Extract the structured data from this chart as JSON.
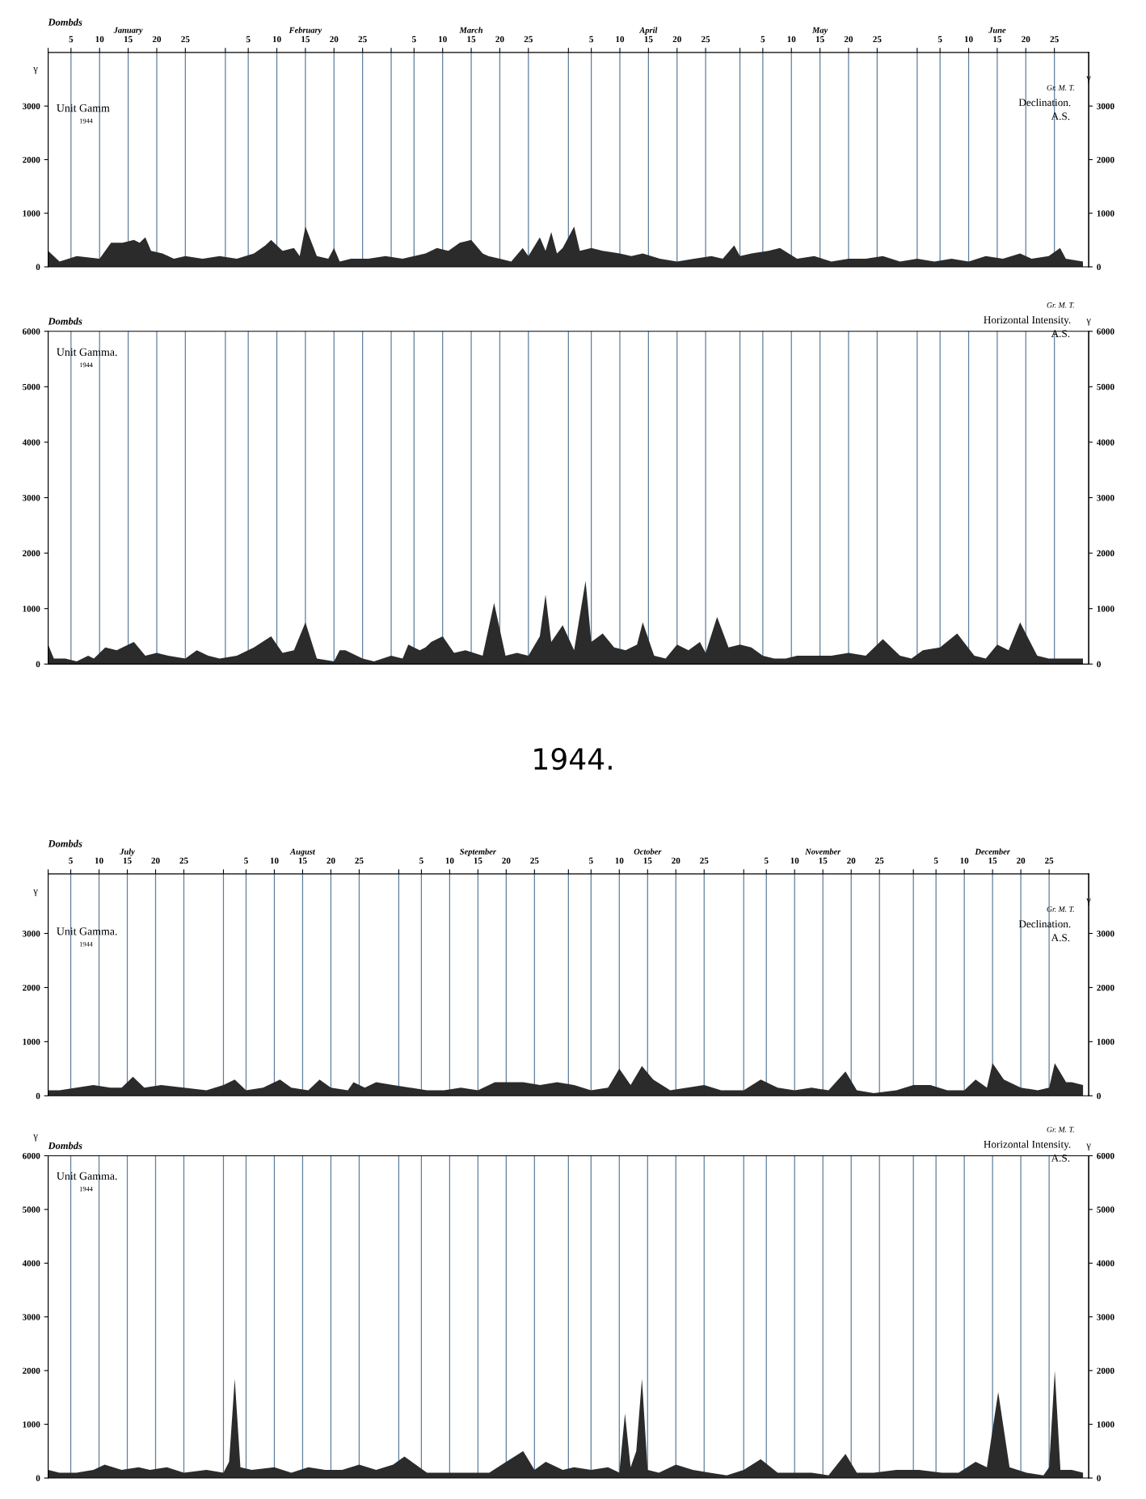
{
  "chart_data": [
    {
      "type": "area",
      "title": "Dombds",
      "ylabel": "γ",
      "y2label": "γ",
      "color": "#2b2b2b",
      "grid": "x",
      "xlim": [
        "1944-01-01",
        "1944-07-01"
      ],
      "ylim": [
        0,
        4000
      ],
      "yticks": [
        0,
        1000,
        2000,
        3000
      ],
      "y2lim": [
        0,
        4000
      ],
      "y2ticks": [
        0,
        1000,
        2000,
        3000
      ],
      "xticks": [
        {
          "value": "1944-01-01",
          "label": null
        },
        {
          "value": "1944-01-05",
          "label": "5"
        },
        {
          "value": "1944-01-10",
          "label": "10"
        },
        {
          "value": "1944-01-15",
          "label": "15"
        },
        {
          "value": "1944-01-20",
          "label": "20"
        },
        {
          "value": "1944-01-25",
          "label": "25"
        },
        {
          "value": "1944-02-01",
          "label": null
        },
        {
          "value": "1944-02-05",
          "label": "5"
        },
        {
          "value": "1944-02-10",
          "label": "10"
        },
        {
          "value": "1944-02-15",
          "label": "15"
        },
        {
          "value": "1944-02-20",
          "label": "20"
        },
        {
          "value": "1944-02-25",
          "label": "25"
        },
        {
          "value": "1944-03-01",
          "label": null
        },
        {
          "value": "1944-03-05",
          "label": "5"
        },
        {
          "value": "1944-03-10",
          "label": "10"
        },
        {
          "value": "1944-03-15",
          "label": "15"
        },
        {
          "value": "1944-03-20",
          "label": "20"
        },
        {
          "value": "1944-03-25",
          "label": "25"
        },
        {
          "value": "1944-04-01",
          "label": null
        },
        {
          "value": "1944-04-05",
          "label": "5"
        },
        {
          "value": "1944-04-10",
          "label": "10"
        },
        {
          "value": "1944-04-15",
          "label": "15"
        },
        {
          "value": "1944-04-20",
          "label": "20"
        },
        {
          "value": "1944-04-25",
          "label": "25"
        },
        {
          "value": "1944-05-01",
          "label": null
        },
        {
          "value": "1944-05-05",
          "label": "5"
        },
        {
          "value": "1944-05-10",
          "label": "10"
        },
        {
          "value": "1944-05-15",
          "label": "15"
        },
        {
          "value": "1944-05-20",
          "label": "20"
        },
        {
          "value": "1944-05-25",
          "label": "25"
        },
        {
          "value": "1944-06-01",
          "label": null
        },
        {
          "value": "1944-06-05",
          "label": "5"
        },
        {
          "value": "1944-06-10",
          "label": "10"
        },
        {
          "value": "1944-06-15",
          "label": "15"
        },
        {
          "value": "1944-06-20",
          "label": "20"
        },
        {
          "value": "1944-06-25",
          "label": "25"
        }
      ],
      "annotations": [
        "January",
        "February",
        "March",
        "April",
        "May",
        "June",
        "Unit Gamm",
        "1944",
        "Gr. M. T.",
        "Declination.",
        "A.S."
      ],
      "x": [
        "1944-01-01",
        "1944-01-03",
        "1944-01-06",
        "1944-01-10",
        "1944-01-12",
        "1944-01-14",
        "1944-01-16",
        "1944-01-17",
        "1944-01-18",
        "1944-01-19",
        "1944-01-21",
        "1944-01-23",
        "1944-01-25",
        "1944-01-28",
        "1944-01-31",
        "1944-02-03",
        "1944-02-06",
        "1944-02-08",
        "1944-02-09",
        "1944-02-11",
        "1944-02-13",
        "1944-02-14",
        "1944-02-15",
        "1944-02-17",
        "1944-02-19",
        "1944-02-20",
        "1944-02-21",
        "1944-02-23",
        "1944-02-26",
        "1944-02-29",
        "1944-03-03",
        "1944-03-05",
        "1944-03-07",
        "1944-03-09",
        "1944-03-11",
        "1944-03-13",
        "1944-03-15",
        "1944-03-17",
        "1944-03-18",
        "1944-03-20",
        "1944-03-22",
        "1944-03-24",
        "1944-03-25",
        "1944-03-27",
        "1944-03-28",
        "1944-03-29",
        "1944-03-30",
        "1944-03-31",
        "1944-04-02",
        "1944-04-03",
        "1944-04-05",
        "1944-04-07",
        "1944-04-10",
        "1944-04-12",
        "1944-04-14",
        "1944-04-17",
        "1944-04-20",
        "1944-04-23",
        "1944-04-26",
        "1944-04-28",
        "1944-04-30",
        "1944-05-01",
        "1944-05-03",
        "1944-05-06",
        "1944-05-08",
        "1944-05-11",
        "1944-05-14",
        "1944-05-17",
        "1944-05-20",
        "1944-05-23",
        "1944-05-26",
        "1944-05-29",
        "1944-06-01",
        "1944-06-04",
        "1944-06-07",
        "1944-06-10",
        "1944-06-13",
        "1944-06-16",
        "1944-06-19",
        "1944-06-21",
        "1944-06-24",
        "1944-06-26",
        "1944-06-27",
        "1944-06-30"
      ],
      "values": [
        300,
        100,
        200,
        150,
        450,
        450,
        500,
        450,
        550,
        300,
        250,
        150,
        200,
        150,
        200,
        150,
        250,
        400,
        500,
        300,
        350,
        200,
        750,
        200,
        150,
        350,
        100,
        150,
        150,
        200,
        150,
        200,
        250,
        350,
        300,
        450,
        500,
        250,
        200,
        150,
        100,
        350,
        200,
        550,
        300,
        650,
        250,
        350,
        750,
        300,
        350,
        300,
        250,
        200,
        250,
        150,
        100,
        150,
        200,
        150,
        400,
        200,
        250,
        300,
        350,
        150,
        200,
        100,
        150,
        150,
        200,
        100,
        150,
        100,
        150,
        100,
        200,
        150,
        250,
        150,
        200,
        350,
        150,
        100
      ]
    },
    {
      "type": "area",
      "title": "Dombds",
      "y2label": "γ",
      "color": "#2b2b2b",
      "grid": "x",
      "tick_labels": "y",
      "xlim": [
        "1944-01-01",
        "1944-07-01"
      ],
      "ylim": [
        0,
        6000
      ],
      "yticks": [
        0,
        1000,
        2000,
        3000,
        4000,
        5000,
        6000
      ],
      "y2lim": [
        0,
        6000
      ],
      "y2ticks": [
        0,
        1000,
        2000,
        3000,
        4000,
        5000,
        6000
      ],
      "xticks": [
        {
          "value": "1944-01-01",
          "label": null
        },
        {
          "value": "1944-01-05",
          "label": null
        },
        {
          "value": "1944-01-10",
          "label": null
        },
        {
          "value": "1944-01-15",
          "label": null
        },
        {
          "value": "1944-01-20",
          "label": null
        },
        {
          "value": "1944-01-25",
          "label": null
        },
        {
          "value": "1944-02-01",
          "label": null
        },
        {
          "value": "1944-02-05",
          "label": null
        },
        {
          "value": "1944-02-10",
          "label": null
        },
        {
          "value": "1944-02-15",
          "label": null
        },
        {
          "value": "1944-02-20",
          "label": null
        },
        {
          "value": "1944-02-25",
          "label": null
        },
        {
          "value": "1944-03-01",
          "label": null
        },
        {
          "value": "1944-03-05",
          "label": null
        },
        {
          "value": "1944-03-10",
          "label": null
        },
        {
          "value": "1944-03-15",
          "label": null
        },
        {
          "value": "1944-03-20",
          "label": null
        },
        {
          "value": "1944-03-25",
          "label": null
        },
        {
          "value": "1944-04-01",
          "label": null
        },
        {
          "value": "1944-04-05",
          "label": null
        },
        {
          "value": "1944-04-10",
          "label": null
        },
        {
          "value": "1944-04-15",
          "label": null
        },
        {
          "value": "1944-04-20",
          "label": null
        },
        {
          "value": "1944-04-25",
          "label": null
        },
        {
          "value": "1944-05-01",
          "label": null
        },
        {
          "value": "1944-05-05",
          "label": null
        },
        {
          "value": "1944-05-10",
          "label": null
        },
        {
          "value": "1944-05-15",
          "label": null
        },
        {
          "value": "1944-05-20",
          "label": null
        },
        {
          "value": "1944-05-25",
          "label": null
        },
        {
          "value": "1944-06-01",
          "label": null
        },
        {
          "value": "1944-06-05",
          "label": null
        },
        {
          "value": "1944-06-10",
          "label": null
        },
        {
          "value": "1944-06-15",
          "label": null
        },
        {
          "value": "1944-06-20",
          "label": null
        },
        {
          "value": "1944-06-25",
          "label": null
        }
      ],
      "annotations": [
        "Unit Gamma.",
        "1944",
        "Gr. M. T.",
        "Horizontal Intensity.",
        "A.S."
      ],
      "x": [
        "1944-01-01",
        "1944-01-02",
        "1944-01-04",
        "1944-01-06",
        "1944-01-08",
        "1944-01-09",
        "1944-01-11",
        "1944-01-13",
        "1944-01-14",
        "1944-01-16",
        "1944-01-18",
        "1944-01-20",
        "1944-01-22",
        "1944-01-25",
        "1944-01-27",
        "1944-01-29",
        "1944-01-31",
        "1944-02-03",
        "1944-02-06",
        "1944-02-09",
        "1944-02-11",
        "1944-02-13",
        "1944-02-15",
        "1944-02-17",
        "1944-02-20",
        "1944-02-21",
        "1944-02-22",
        "1944-02-25",
        "1944-02-27",
        "1944-03-01",
        "1944-03-03",
        "1944-03-04",
        "1944-03-06",
        "1944-03-07",
        "1944-03-08",
        "1944-03-10",
        "1944-03-12",
        "1944-03-14",
        "1944-03-17",
        "1944-03-19",
        "1944-03-21",
        "1944-03-23",
        "1944-03-25",
        "1944-03-27",
        "1944-03-28",
        "1944-03-29",
        "1944-03-31",
        "1944-04-02",
        "1944-04-04",
        "1944-04-05",
        "1944-04-07",
        "1944-04-09",
        "1944-04-11",
        "1944-04-13",
        "1944-04-14",
        "1944-04-16",
        "1944-04-18",
        "1944-04-20",
        "1944-04-22",
        "1944-04-24",
        "1944-04-25",
        "1944-04-27",
        "1944-04-29",
        "1944-05-01",
        "1944-05-03",
        "1944-05-05",
        "1944-05-07",
        "1944-05-09",
        "1944-05-11",
        "1944-05-14",
        "1944-05-17",
        "1944-05-20",
        "1944-05-23",
        "1944-05-26",
        "1944-05-28",
        "1944-05-29",
        "1944-05-31",
        "1944-06-02",
        "1944-06-05",
        "1944-06-08",
        "1944-06-11",
        "1944-06-13",
        "1944-06-15",
        "1944-06-17",
        "1944-06-19",
        "1944-06-22",
        "1944-06-24",
        "1944-06-26",
        "1944-06-28",
        "1944-06-30"
      ],
      "values": [
        350,
        100,
        100,
        50,
        150,
        100,
        300,
        250,
        300,
        400,
        150,
        200,
        150,
        100,
        250,
        150,
        100,
        150,
        300,
        500,
        200,
        250,
        750,
        100,
        50,
        250,
        250,
        100,
        50,
        150,
        100,
        350,
        250,
        300,
        400,
        500,
        200,
        250,
        150,
        1100,
        150,
        200,
        150,
        500,
        1250,
        400,
        700,
        250,
        1500,
        400,
        550,
        300,
        250,
        350,
        750,
        150,
        100,
        350,
        250,
        400,
        200,
        850,
        300,
        350,
        300,
        150,
        100,
        100,
        150,
        150,
        150,
        200,
        150,
        450,
        250,
        150,
        100,
        250,
        300,
        550,
        150,
        100,
        350,
        250,
        750,
        150,
        100,
        100,
        100,
        100
      ]
    },
    {
      "type": "area",
      "title": "Dombds",
      "subtitle": "1944.",
      "ylabel": "γ",
      "y2label": "γ",
      "color": "#2b2b2b",
      "grid": "x",
      "xlim": [
        "1944-07-01",
        "1945-01-01"
      ],
      "ylim": [
        0,
        4100
      ],
      "yticks": [
        0,
        1000,
        2000,
        3000
      ],
      "y2lim": [
        0,
        4100
      ],
      "y2ticks": [
        0,
        1000,
        2000,
        3000
      ],
      "xticks": [
        {
          "value": "1944-07-01",
          "label": null
        },
        {
          "value": "1944-07-05",
          "label": "5"
        },
        {
          "value": "1944-07-10",
          "label": "10"
        },
        {
          "value": "1944-07-15",
          "label": "15"
        },
        {
          "value": "1944-07-20",
          "label": "20"
        },
        {
          "value": "1944-07-25",
          "label": "25"
        },
        {
          "value": "1944-08-01",
          "label": null
        },
        {
          "value": "1944-08-05",
          "label": "5"
        },
        {
          "value": "1944-08-10",
          "label": "10"
        },
        {
          "value": "1944-08-15",
          "label": "15"
        },
        {
          "value": "1944-08-20",
          "label": "20"
        },
        {
          "value": "1944-08-25",
          "label": "25"
        },
        {
          "value": "1944-09-01",
          "label": null
        },
        {
          "value": "1944-09-05",
          "label": "5"
        },
        {
          "value": "1944-09-10",
          "label": "10"
        },
        {
          "value": "1944-09-15",
          "label": "15"
        },
        {
          "value": "1944-09-20",
          "label": "20"
        },
        {
          "value": "1944-09-25",
          "label": "25"
        },
        {
          "value": "1944-10-01",
          "label": null
        },
        {
          "value": "1944-10-05",
          "label": "5"
        },
        {
          "value": "1944-10-10",
          "label": "10"
        },
        {
          "value": "1944-10-15",
          "label": "15"
        },
        {
          "value": "1944-10-20",
          "label": "20"
        },
        {
          "value": "1944-10-25",
          "label": "25"
        },
        {
          "value": "1944-11-01",
          "label": null
        },
        {
          "value": "1944-11-05",
          "label": "5"
        },
        {
          "value": "1944-11-10",
          "label": "10"
        },
        {
          "value": "1944-11-15",
          "label": "15"
        },
        {
          "value": "1944-11-20",
          "label": "20"
        },
        {
          "value": "1944-11-25",
          "label": "25"
        },
        {
          "value": "1944-12-01",
          "label": null
        },
        {
          "value": "1944-12-05",
          "label": "5"
        },
        {
          "value": "1944-12-10",
          "label": "10"
        },
        {
          "value": "1944-12-15",
          "label": "15"
        },
        {
          "value": "1944-12-20",
          "label": "20"
        },
        {
          "value": "1944-12-25",
          "label": "25"
        }
      ],
      "annotations": [
        "July",
        "August",
        "September",
        "October",
        "November",
        "December",
        "Unit Gamma.",
        "1944",
        "Gr. M. T.",
        "Declination.",
        "A.S."
      ],
      "x": [
        "1944-07-01",
        "1944-07-03",
        "1944-07-06",
        "1944-07-09",
        "1944-07-12",
        "1944-07-14",
        "1944-07-16",
        "1944-07-18",
        "1944-07-21",
        "1944-07-25",
        "1944-07-29",
        "1944-08-01",
        "1944-08-03",
        "1944-08-05",
        "1944-08-08",
        "1944-08-11",
        "1944-08-13",
        "1944-08-16",
        "1944-08-18",
        "1944-08-20",
        "1944-08-23",
        "1944-08-24",
        "1944-08-26",
        "1944-08-28",
        "1944-08-31",
        "1944-09-03",
        "1944-09-06",
        "1944-09-09",
        "1944-09-12",
        "1944-09-15",
        "1944-09-18",
        "1944-09-20",
        "1944-09-23",
        "1944-09-26",
        "1944-09-29",
        "1944-10-02",
        "1944-10-05",
        "1944-10-08",
        "1944-10-10",
        "1944-10-12",
        "1944-10-14",
        "1944-10-16",
        "1944-10-19",
        "1944-10-22",
        "1944-10-25",
        "1944-10-28",
        "1944-11-01",
        "1944-11-04",
        "1944-11-07",
        "1944-11-10",
        "1944-11-13",
        "1944-11-16",
        "1944-11-19",
        "1944-11-21",
        "1944-11-24",
        "1944-11-28",
        "1944-12-01",
        "1944-12-04",
        "1944-12-07",
        "1944-12-10",
        "1944-12-12",
        "1944-12-14",
        "1944-12-15",
        "1944-12-17",
        "1944-12-20",
        "1944-12-23",
        "1944-12-25",
        "1944-12-26",
        "1944-12-28",
        "1944-12-29",
        "1944-12-31"
      ],
      "values": [
        100,
        100,
        150,
        200,
        150,
        150,
        350,
        150,
        200,
        150,
        100,
        200,
        300,
        100,
        150,
        300,
        150,
        100,
        300,
        150,
        100,
        250,
        150,
        250,
        200,
        150,
        100,
        100,
        150,
        100,
        250,
        250,
        250,
        200,
        250,
        200,
        100,
        150,
        500,
        200,
        550,
        300,
        100,
        150,
        200,
        100,
        100,
        300,
        150,
        100,
        150,
        100,
        450,
        100,
        50,
        100,
        200,
        200,
        100,
        100,
        300,
        150,
        600,
        300,
        150,
        100,
        150,
        600,
        250,
        250,
        200
      ]
    },
    {
      "type": "area",
      "title": "Dombds",
      "ylabel": "γ",
      "y2label": "γ",
      "color": "#2b2b2b",
      "grid": "x",
      "tick_labels": "y",
      "xlim": [
        "1944-07-01",
        "1945-01-01"
      ],
      "ylim": [
        0,
        6000
      ],
      "yticks": [
        0,
        1000,
        2000,
        3000,
        4000,
        5000,
        6000
      ],
      "y2lim": [
        0,
        6000
      ],
      "y2ticks": [
        0,
        1000,
        2000,
        3000,
        4000,
        5000,
        6000
      ],
      "xticks": [
        {
          "value": "1944-07-01",
          "label": null
        },
        {
          "value": "1944-07-05",
          "label": null
        },
        {
          "value": "1944-07-10",
          "label": null
        },
        {
          "value": "1944-07-15",
          "label": null
        },
        {
          "value": "1944-07-20",
          "label": null
        },
        {
          "value": "1944-07-25",
          "label": null
        },
        {
          "value": "1944-08-01",
          "label": null
        },
        {
          "value": "1944-08-05",
          "label": null
        },
        {
          "value": "1944-08-10",
          "label": null
        },
        {
          "value": "1944-08-15",
          "label": null
        },
        {
          "value": "1944-08-20",
          "label": null
        },
        {
          "value": "1944-08-25",
          "label": null
        },
        {
          "value": "1944-09-01",
          "label": null
        },
        {
          "value": "1944-09-05",
          "label": null
        },
        {
          "value": "1944-09-10",
          "label": null
        },
        {
          "value": "1944-09-15",
          "label": null
        },
        {
          "value": "1944-09-20",
          "label": null
        },
        {
          "value": "1944-09-25",
          "label": null
        },
        {
          "value": "1944-10-01",
          "label": null
        },
        {
          "value": "1944-10-05",
          "label": null
        },
        {
          "value": "1944-10-10",
          "label": null
        },
        {
          "value": "1944-10-15",
          "label": null
        },
        {
          "value": "1944-10-20",
          "label": null
        },
        {
          "value": "1944-10-25",
          "label": null
        },
        {
          "value": "1944-11-01",
          "label": null
        },
        {
          "value": "1944-11-05",
          "label": null
        },
        {
          "value": "1944-11-10",
          "label": null
        },
        {
          "value": "1944-11-15",
          "label": null
        },
        {
          "value": "1944-11-20",
          "label": null
        },
        {
          "value": "1944-11-25",
          "label": null
        },
        {
          "value": "1944-12-01",
          "label": null
        },
        {
          "value": "1944-12-05",
          "label": null
        },
        {
          "value": "1944-12-10",
          "label": null
        },
        {
          "value": "1944-12-15",
          "label": null
        },
        {
          "value": "1944-12-20",
          "label": null
        },
        {
          "value": "1944-12-25",
          "label": null
        }
      ],
      "annotations": [
        "Unit Gamma.",
        "1944",
        "Gr. M. T.",
        "Horizontal Intensity.",
        "A.S."
      ],
      "x": [
        "1944-07-01",
        "1944-07-03",
        "1944-07-06",
        "1944-07-09",
        "1944-07-11",
        "1944-07-14",
        "1944-07-17",
        "1944-07-19",
        "1944-07-22",
        "1944-07-25",
        "1944-07-29",
        "1944-08-01",
        "1944-08-02",
        "1944-08-03",
        "1944-08-04",
        "1944-08-06",
        "1944-08-10",
        "1944-08-13",
        "1944-08-16",
        "1944-08-19",
        "1944-08-22",
        "1944-08-25",
        "1944-08-28",
        "1944-08-31",
        "1944-09-02",
        "1944-09-04",
        "1944-09-06",
        "1944-09-09",
        "1944-09-13",
        "1944-09-17",
        "1944-09-20",
        "1944-09-23",
        "1944-09-25",
        "1944-09-27",
        "1944-09-30",
        "1944-10-02",
        "1944-10-05",
        "1944-10-08",
        "1944-10-10",
        "1944-10-11",
        "1944-10-12",
        "1944-10-13",
        "1944-10-14",
        "1944-10-15",
        "1944-10-17",
        "1944-10-20",
        "1944-10-23",
        "1944-10-26",
        "1944-10-29",
        "1944-11-01",
        "1944-11-04",
        "1944-11-07",
        "1944-11-10",
        "1944-11-13",
        "1944-11-16",
        "1944-11-19",
        "1944-11-21",
        "1944-11-24",
        "1944-11-28",
        "1944-12-02",
        "1944-12-06",
        "1944-12-09",
        "1944-12-12",
        "1944-12-14",
        "1944-12-16",
        "1944-12-18",
        "1944-12-21",
        "1944-12-24",
        "1944-12-25",
        "1944-12-26",
        "1944-12-27",
        "1944-12-29",
        "1944-12-31"
      ],
      "values": [
        150,
        100,
        100,
        150,
        250,
        150,
        200,
        150,
        200,
        100,
        150,
        100,
        300,
        1850,
        200,
        150,
        200,
        100,
        200,
        150,
        150,
        250,
        150,
        250,
        400,
        250,
        100,
        100,
        100,
        100,
        300,
        500,
        150,
        300,
        150,
        200,
        150,
        200,
        100,
        1200,
        200,
        500,
        1850,
        150,
        100,
        250,
        150,
        100,
        50,
        150,
        350,
        100,
        100,
        100,
        50,
        450,
        100,
        100,
        150,
        150,
        100,
        100,
        300,
        200,
        1600,
        200,
        100,
        50,
        200,
        2000,
        150,
        150,
        100
      ]
    }
  ]
}
